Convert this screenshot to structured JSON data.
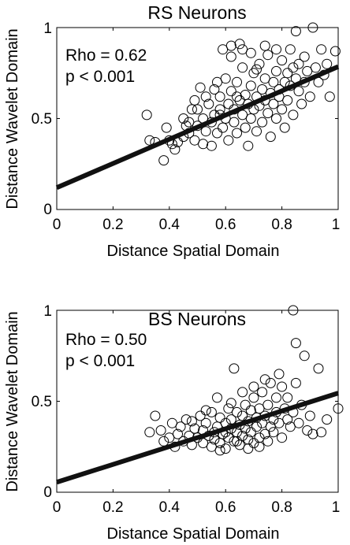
{
  "chart_data": [
    {
      "type": "scatter",
      "title": "RS Neurons",
      "xlabel": "Distance Spatial Domain",
      "ylabel": "Distance Wavelet Domain",
      "xlim": [
        0,
        1
      ],
      "ylim": [
        0,
        1
      ],
      "xticks": [
        "0",
        "0.2",
        "0.4",
        "0.6",
        "0.8",
        "1"
      ],
      "yticks": [
        {
          "value": 0,
          "label": "0"
        },
        {
          "value": 0.5,
          "label": "0.5"
        },
        {
          "value": 1,
          "label": "1"
        }
      ],
      "annotations": [
        "Rho = 0.62",
        "p < 0.001"
      ],
      "fit_line": {
        "x": [
          0,
          1
        ],
        "y": [
          0.12,
          0.785
        ]
      },
      "marker": "open circle",
      "grid": false,
      "points": [
        [
          0.32,
          0.52
        ],
        [
          0.33,
          0.38
        ],
        [
          0.35,
          0.37
        ],
        [
          0.38,
          0.27
        ],
        [
          0.39,
          0.45
        ],
        [
          0.4,
          0.38
        ],
        [
          0.41,
          0.36
        ],
        [
          0.42,
          0.33
        ],
        [
          0.43,
          0.37
        ],
        [
          0.45,
          0.4
        ],
        [
          0.45,
          0.5
        ],
        [
          0.46,
          0.46
        ],
        [
          0.47,
          0.42
        ],
        [
          0.48,
          0.55
        ],
        [
          0.49,
          0.38
        ],
        [
          0.49,
          0.6
        ],
        [
          0.5,
          0.46
        ],
        [
          0.51,
          0.67
        ],
        [
          0.52,
          0.36
        ],
        [
          0.52,
          0.5
        ],
        [
          0.53,
          0.43
        ],
        [
          0.54,
          0.58
        ],
        [
          0.55,
          0.48
        ],
        [
          0.55,
          0.35
        ],
        [
          0.56,
          0.66
        ],
        [
          0.56,
          0.52
        ],
        [
          0.57,
          0.42
        ],
        [
          0.58,
          0.55
        ],
        [
          0.58,
          0.62
        ],
        [
          0.59,
          0.45
        ],
        [
          0.59,
          0.88
        ],
        [
          0.6,
          0.5
        ],
        [
          0.6,
          0.72
        ],
        [
          0.61,
          0.58
        ],
        [
          0.61,
          0.38
        ],
        [
          0.62,
          0.65
        ],
        [
          0.62,
          0.9
        ],
        [
          0.63,
          0.48
        ],
        [
          0.63,
          0.55
        ],
        [
          0.64,
          0.7
        ],
        [
          0.64,
          0.42
        ],
        [
          0.65,
          0.6
        ],
        [
          0.65,
          0.91
        ],
        [
          0.66,
          0.52
        ],
        [
          0.66,
          0.78
        ],
        [
          0.67,
          0.45
        ],
        [
          0.67,
          0.63
        ],
        [
          0.68,
          0.35
        ],
        [
          0.68,
          0.58
        ],
        [
          0.69,
          0.68
        ],
        [
          0.69,
          0.5
        ],
        [
          0.7,
          0.75
        ],
        [
          0.7,
          0.55
        ],
        [
          0.71,
          0.62
        ],
        [
          0.71,
          0.43
        ],
        [
          0.72,
          0.8
        ],
        [
          0.72,
          0.57
        ],
        [
          0.73,
          0.66
        ],
        [
          0.73,
          0.48
        ],
        [
          0.74,
          0.72
        ],
        [
          0.74,
          0.6
        ],
        [
          0.75,
          0.53
        ],
        [
          0.75,
          0.85
        ],
        [
          0.76,
          0.64
        ],
        [
          0.76,
          0.4
        ],
        [
          0.77,
          0.7
        ],
        [
          0.77,
          0.58
        ],
        [
          0.78,
          0.76
        ],
        [
          0.78,
          0.5
        ],
        [
          0.79,
          0.66
        ],
        [
          0.79,
          0.62
        ],
        [
          0.8,
          0.82
        ],
        [
          0.8,
          0.55
        ],
        [
          0.81,
          0.7
        ],
        [
          0.81,
          0.45
        ],
        [
          0.82,
          0.75
        ],
        [
          0.82,
          0.6
        ],
        [
          0.83,
          0.88
        ],
        [
          0.83,
          0.68
        ],
        [
          0.84,
          0.52
        ],
        [
          0.84,
          0.78
        ],
        [
          0.85,
          0.72
        ],
        [
          0.85,
          0.98
        ],
        [
          0.86,
          0.65
        ],
        [
          0.86,
          0.8
        ],
        [
          0.87,
          0.58
        ],
        [
          0.88,
          0.84
        ],
        [
          0.88,
          0.7
        ],
        [
          0.89,
          0.76
        ],
        [
          0.9,
          0.62
        ],
        [
          0.91,
          1.0
        ],
        [
          0.92,
          0.78
        ],
        [
          0.93,
          0.7
        ],
        [
          0.94,
          0.88
        ],
        [
          0.95,
          0.74
        ],
        [
          0.96,
          0.8
        ],
        [
          0.97,
          0.62
        ],
        [
          0.99,
          0.87
        ],
        [
          0.62,
          0.84
        ],
        [
          0.57,
          0.7
        ],
        [
          0.53,
          0.62
        ],
        [
          0.5,
          0.55
        ],
        [
          0.47,
          0.48
        ],
        [
          0.66,
          0.88
        ],
        [
          0.69,
          0.86
        ],
        [
          0.74,
          0.9
        ],
        [
          0.71,
          0.77
        ],
        [
          0.78,
          0.88
        ],
        [
          0.58,
          0.52
        ],
        [
          0.64,
          0.62
        ]
      ]
    },
    {
      "type": "scatter",
      "title": "BS Neurons",
      "xlabel": "Distance Spatial Domain",
      "ylabel": "Distance Wavelet Domain",
      "xlim": [
        0,
        1
      ],
      "ylim": [
        0,
        1
      ],
      "xticks": [
        "0",
        "0.2",
        "0.4",
        "0.6",
        "0.8",
        "1"
      ],
      "yticks": [
        {
          "value": 0,
          "label": "0"
        },
        {
          "value": 0.5,
          "label": "0.5"
        },
        {
          "value": 1,
          "label": "1"
        }
      ],
      "annotations": [
        "Rho = 0.50",
        "p < 0.001"
      ],
      "fit_line": {
        "x": [
          0,
          1
        ],
        "y": [
          0.055,
          0.545
        ]
      },
      "marker": "open circle",
      "grid": false,
      "points": [
        [
          0.33,
          0.33
        ],
        [
          0.35,
          0.42
        ],
        [
          0.37,
          0.34
        ],
        [
          0.38,
          0.28
        ],
        [
          0.4,
          0.3
        ],
        [
          0.41,
          0.38
        ],
        [
          0.42,
          0.25
        ],
        [
          0.43,
          0.32
        ],
        [
          0.44,
          0.36
        ],
        [
          0.45,
          0.28
        ],
        [
          0.46,
          0.4
        ],
        [
          0.47,
          0.31
        ],
        [
          0.48,
          0.26
        ],
        [
          0.49,
          0.35
        ],
        [
          0.5,
          0.3
        ],
        [
          0.51,
          0.42
        ],
        [
          0.52,
          0.27
        ],
        [
          0.52,
          0.34
        ],
        [
          0.53,
          0.38
        ],
        [
          0.54,
          0.31
        ],
        [
          0.55,
          0.25
        ],
        [
          0.55,
          0.44
        ],
        [
          0.56,
          0.33
        ],
        [
          0.56,
          0.29
        ],
        [
          0.57,
          0.36
        ],
        [
          0.58,
          0.41
        ],
        [
          0.58,
          0.27
        ],
        [
          0.59,
          0.32
        ],
        [
          0.6,
          0.38
        ],
        [
          0.6,
          0.24
        ],
        [
          0.61,
          0.46
        ],
        [
          0.61,
          0.3
        ],
        [
          0.62,
          0.35
        ],
        [
          0.62,
          0.4
        ],
        [
          0.63,
          0.28
        ],
        [
          0.63,
          0.68
        ],
        [
          0.64,
          0.33
        ],
        [
          0.64,
          0.44
        ],
        [
          0.65,
          0.37
        ],
        [
          0.65,
          0.26
        ],
        [
          0.66,
          0.42
        ],
        [
          0.66,
          0.31
        ],
        [
          0.67,
          0.48
        ],
        [
          0.67,
          0.35
        ],
        [
          0.68,
          0.29
        ],
        [
          0.68,
          0.39
        ],
        [
          0.69,
          0.45
        ],
        [
          0.69,
          0.33
        ],
        [
          0.7,
          0.52
        ],
        [
          0.7,
          0.27
        ],
        [
          0.71,
          0.41
        ],
        [
          0.71,
          0.36
        ],
        [
          0.72,
          0.3
        ],
        [
          0.72,
          0.46
        ],
        [
          0.73,
          0.38
        ],
        [
          0.73,
          0.55
        ],
        [
          0.74,
          0.32
        ],
        [
          0.74,
          0.42
        ],
        [
          0.75,
          0.28
        ],
        [
          0.75,
          0.48
        ],
        [
          0.76,
          0.36
        ],
        [
          0.76,
          0.6
        ],
        [
          0.77,
          0.4
        ],
        [
          0.77,
          0.33
        ],
        [
          0.78,
          0.52
        ],
        [
          0.78,
          0.44
        ],
        [
          0.79,
          0.38
        ],
        [
          0.79,
          0.65
        ],
        [
          0.8,
          0.3
        ],
        [
          0.8,
          0.58
        ],
        [
          0.81,
          0.46
        ],
        [
          0.82,
          0.4
        ],
        [
          0.82,
          0.52
        ],
        [
          0.83,
          0.36
        ],
        [
          0.84,
          1.0
        ],
        [
          0.84,
          0.44
        ],
        [
          0.85,
          0.82
        ],
        [
          0.85,
          0.6
        ],
        [
          0.86,
          0.38
        ],
        [
          0.87,
          0.48
        ],
        [
          0.88,
          0.75
        ],
        [
          0.89,
          0.34
        ],
        [
          0.9,
          0.42
        ],
        [
          0.91,
          0.32
        ],
        [
          0.93,
          0.68
        ],
        [
          0.94,
          0.33
        ],
        [
          0.96,
          0.4
        ],
        [
          1.0,
          0.46
        ],
        [
          0.57,
          0.52
        ],
        [
          0.62,
          0.49
        ],
        [
          0.53,
          0.45
        ],
        [
          0.48,
          0.39
        ],
        [
          0.66,
          0.55
        ],
        [
          0.7,
          0.58
        ],
        [
          0.74,
          0.62
        ],
        [
          0.6,
          0.33
        ],
        [
          0.64,
          0.28
        ],
        [
          0.68,
          0.24
        ],
        [
          0.58,
          0.23
        ],
        [
          0.72,
          0.25
        ]
      ]
    }
  ]
}
